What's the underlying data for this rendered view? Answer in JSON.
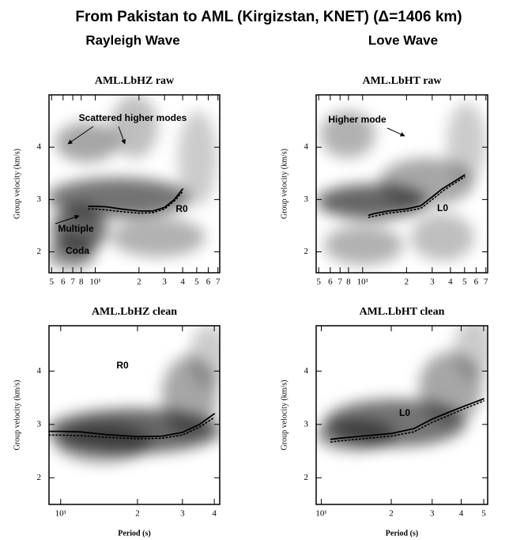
{
  "title": "From Pakistan to AML (Kirgizstan, KNET) (Δ=1406 km)",
  "column_titles": [
    "Rayleigh Wave",
    "Love Wave"
  ],
  "chart_data": [
    {
      "type": "line",
      "title": "AML.LbHZ  raw",
      "ylabel": "Group velocity (km/s)",
      "xscale": "log",
      "xlim": [
        4.8,
        72
      ],
      "ylim": [
        1.6,
        5.0
      ],
      "xticks": [
        5,
        6,
        7,
        8,
        {
          "value": 10,
          "label": "10¹"
        },
        {
          "value": 20,
          "label": "2"
        },
        {
          "value": 30,
          "label": "3"
        },
        {
          "value": 40,
          "label": "4"
        },
        {
          "value": 50,
          "label": "5"
        },
        {
          "value": 60,
          "label": "6"
        },
        {
          "value": 70,
          "label": "7"
        }
      ],
      "yticks": [
        2,
        3,
        4
      ],
      "x": [
        9,
        10,
        12,
        15,
        20,
        25,
        30,
        35,
        40
      ],
      "series": [
        {
          "color": "#000000",
          "style": "solid",
          "values": [
            2.87,
            2.87,
            2.86,
            2.82,
            2.78,
            2.78,
            2.85,
            3.0,
            3.2
          ]
        },
        {
          "color": "#000000",
          "style": "dotted",
          "values": [
            2.82,
            2.82,
            2.8,
            2.77,
            2.74,
            2.75,
            2.82,
            2.97,
            3.15
          ]
        }
      ],
      "annotations": [
        "Scattered higher modes",
        "R0",
        "Multiple",
        "Coda"
      ]
    },
    {
      "type": "line",
      "title": "AML.LbHT  raw",
      "ylabel": "Group velocity (km/s)",
      "xscale": "log",
      "xlim": [
        4.8,
        72
      ],
      "ylim": [
        1.6,
        5.0
      ],
      "xticks": [
        5,
        6,
        7,
        8,
        {
          "value": 10,
          "label": "10¹"
        },
        {
          "value": 20,
          "label": "2"
        },
        {
          "value": 30,
          "label": "3"
        },
        {
          "value": 40,
          "label": "4"
        },
        {
          "value": 50,
          "label": "5"
        },
        {
          "value": 60,
          "label": "6"
        },
        {
          "value": 70,
          "label": "7"
        }
      ],
      "yticks": [
        2,
        3,
        4
      ],
      "x": [
        11,
        12,
        15,
        20,
        25,
        30,
        35,
        40,
        50
      ],
      "series": [
        {
          "color": "#000000",
          "style": "solid",
          "values": [
            2.7,
            2.73,
            2.78,
            2.82,
            2.88,
            3.05,
            3.2,
            3.3,
            3.47
          ]
        },
        {
          "color": "#000000",
          "style": "dotted",
          "values": [
            2.66,
            2.68,
            2.74,
            2.78,
            2.83,
            3.0,
            3.15,
            3.26,
            3.43
          ]
        }
      ],
      "annotations": [
        "Higher mode",
        "L0"
      ]
    },
    {
      "type": "line",
      "title": "AML.LbHZ  clean",
      "ylabel": "Group velocity (km/s)",
      "xlabel": "Period (s)",
      "xscale": "log",
      "xlim": [
        9,
        42
      ],
      "ylim": [
        1.5,
        4.85
      ],
      "xticks": [
        {
          "value": 10,
          "label": "10¹"
        },
        {
          "value": 20,
          "label": "2"
        },
        {
          "value": 30,
          "label": "3"
        },
        {
          "value": 40,
          "label": "4"
        }
      ],
      "yticks": [
        2,
        3,
        4
      ],
      "x": [
        9,
        10,
        12,
        15,
        20,
        25,
        30,
        35,
        40
      ],
      "series": [
        {
          "color": "#000000",
          "style": "solid",
          "values": [
            2.87,
            2.87,
            2.86,
            2.81,
            2.77,
            2.78,
            2.85,
            3.0,
            3.2
          ]
        },
        {
          "color": "#000000",
          "style": "dotted",
          "values": [
            2.8,
            2.8,
            2.79,
            2.76,
            2.73,
            2.74,
            2.8,
            2.95,
            3.13
          ]
        }
      ],
      "annotations": [
        "R0"
      ]
    },
    {
      "type": "line",
      "title": "AML.LbHT  clean",
      "ylabel": "Group velocity (km/s)",
      "xlabel": "Period (s)",
      "xscale": "log",
      "xlim": [
        9.5,
        52
      ],
      "ylim": [
        1.5,
        4.85
      ],
      "xticks": [
        {
          "value": 10,
          "label": "10¹"
        },
        {
          "value": 20,
          "label": "2"
        },
        {
          "value": 30,
          "label": "3"
        },
        {
          "value": 40,
          "label": "4"
        },
        {
          "value": 50,
          "label": "5"
        }
      ],
      "yticks": [
        2,
        3,
        4
      ],
      "x": [
        11,
        12,
        15,
        20,
        25,
        30,
        35,
        40,
        50
      ],
      "series": [
        {
          "color": "#000000",
          "style": "solid",
          "values": [
            2.72,
            2.74,
            2.78,
            2.83,
            2.92,
            3.1,
            3.22,
            3.32,
            3.48
          ]
        },
        {
          "color": "#000000",
          "style": "dotted",
          "values": [
            2.67,
            2.69,
            2.73,
            2.78,
            2.86,
            3.04,
            3.16,
            3.27,
            3.44
          ]
        }
      ],
      "annotations": [
        "L0"
      ]
    }
  ]
}
